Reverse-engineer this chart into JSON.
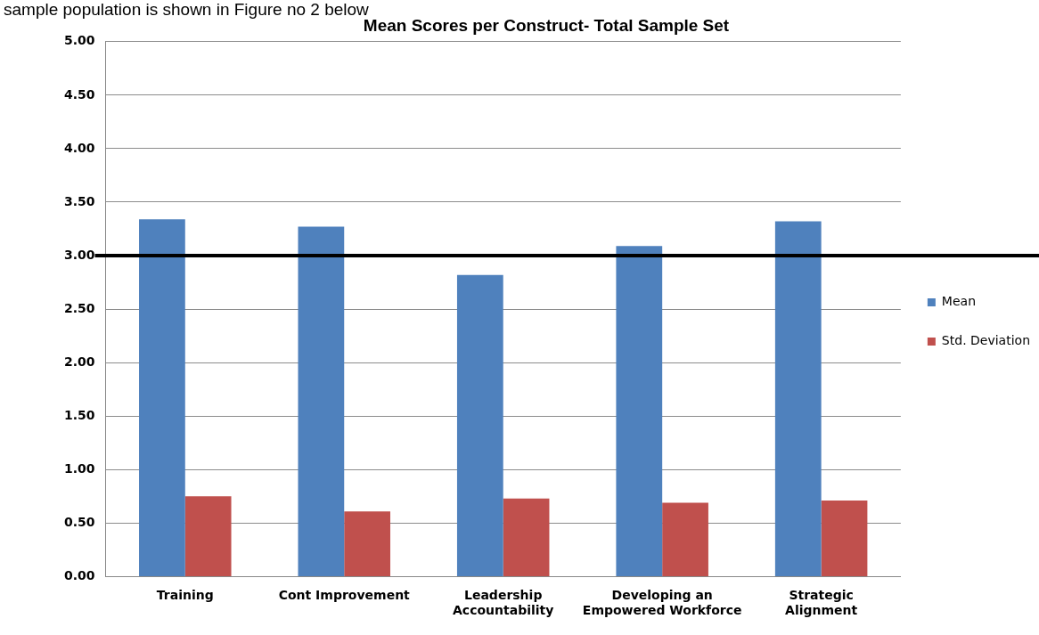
{
  "chart_data": {
    "type": "bar",
    "title": "Mean Scores per Construct- Total Sample Set",
    "categories": [
      "Training",
      "Cont Improvement",
      "Leadership Accountability",
      "Developing an Empowered Workforce",
      "Strategic Alignment"
    ],
    "series": [
      {
        "name": "Mean",
        "color": "#4f81bd",
        "values": [
          3.34,
          3.27,
          2.82,
          3.09,
          3.32
        ]
      },
      {
        "name": "Std. Deviation",
        "color": "#c0504d",
        "values": [
          0.75,
          0.61,
          0.73,
          0.69,
          0.71
        ]
      }
    ],
    "ylim": [
      0,
      5
    ],
    "yticks": [
      {
        "value": 0,
        "label": "0.00"
      },
      {
        "value": 0.5,
        "label": "0.50"
      },
      {
        "value": 1,
        "label": "1.00"
      },
      {
        "value": 1.5,
        "label": "1.50"
      },
      {
        "value": 2,
        "label": "2.00"
      },
      {
        "value": 2.5,
        "label": "2.50"
      },
      {
        "value": 3,
        "label": "3.00"
      },
      {
        "value": 3.5,
        "label": "3.50"
      },
      {
        "value": 4,
        "label": "4.00"
      },
      {
        "value": 4.5,
        "label": "4.50"
      },
      {
        "value": 5,
        "label": "5.00"
      }
    ],
    "grid": "y",
    "legend": "right",
    "ref_lines": [
      {
        "axis": "y",
        "value": 3,
        "color": "#000000"
      }
    ],
    "annotations": [
      "sample population is shown in Figure no 2 below"
    ]
  }
}
